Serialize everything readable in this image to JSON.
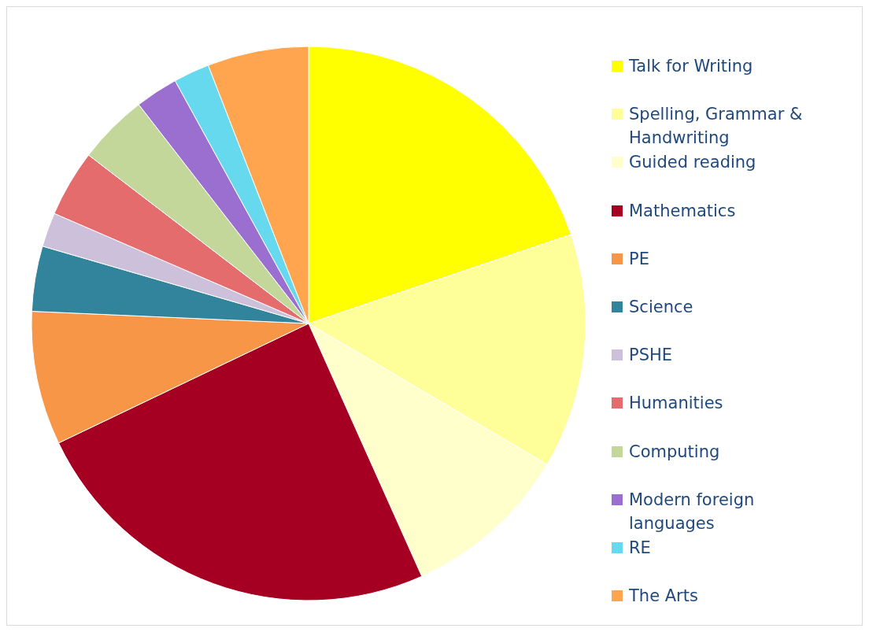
{
  "chart_data": {
    "type": "pie",
    "categories": [
      "Talk for Writing",
      "Spelling, Grammar & Handwriting",
      "Guided reading",
      "Mathematics",
      "PE",
      "Science",
      "PSHE",
      "Humanities",
      "Computing",
      "Modern foreign languages",
      "RE",
      "The Arts"
    ],
    "values": [
      19.8,
      13.7,
      9.8,
      24.6,
      7.8,
      3.8,
      2.0,
      3.9,
      4.1,
      2.5,
      2.1,
      5.9
    ],
    "colors": [
      "#ffff00",
      "#ffff99",
      "#ffffcc",
      "#a50021",
      "#f79646",
      "#31849b",
      "#ccc0da",
      "#e46c6c",
      "#c4d79b",
      "#9b6fd0",
      "#66d9ee",
      "#ffa54f"
    ],
    "legend": "right"
  }
}
